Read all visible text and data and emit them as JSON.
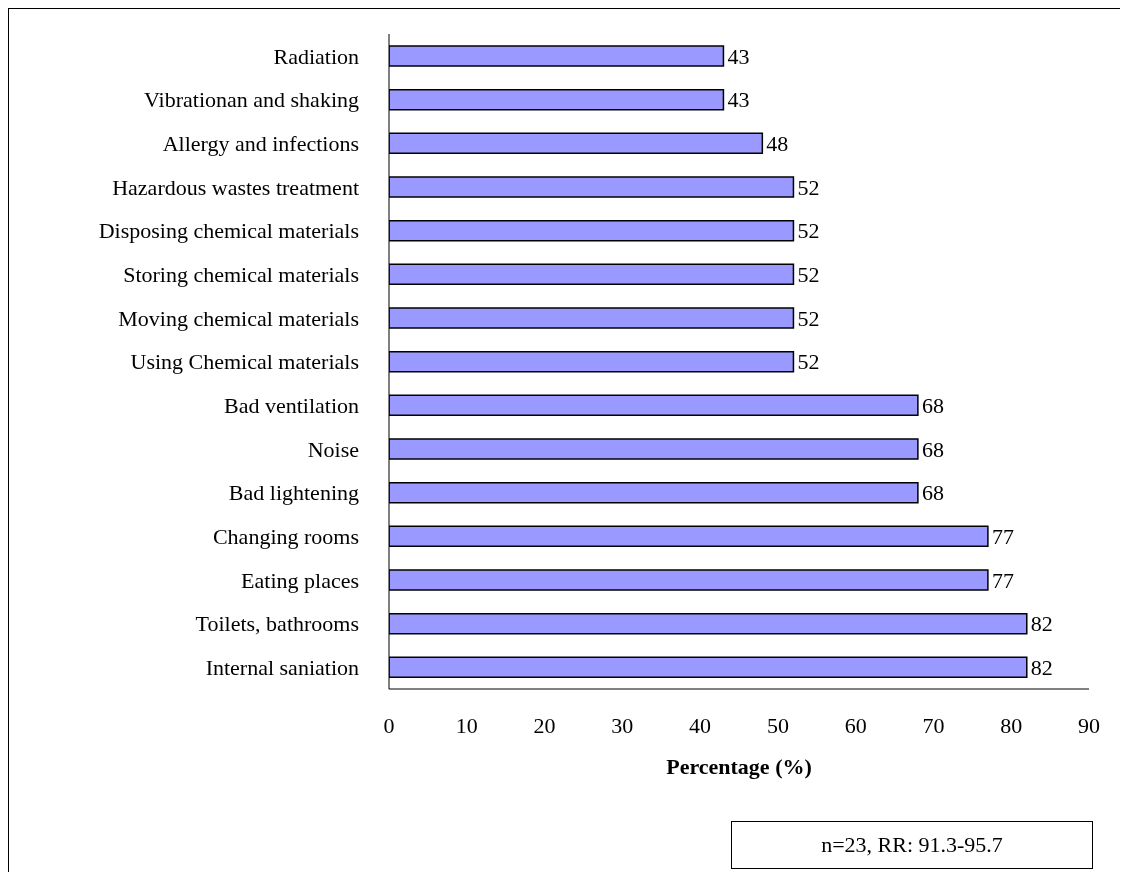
{
  "chart_data": {
    "type": "bar",
    "orientation": "horizontal",
    "xlabel": "Percentage (%)",
    "categories": [
      "Radiation",
      "Vibrationan and shaking",
      "Allergy and infections",
      "Hazardous wastes treatment",
      "Disposing chemical materials",
      "Storing chemical materials",
      "Moving chemical materials",
      "Using Chemical materials",
      "Bad ventilation",
      "Noise",
      "Bad lightening",
      "Changing rooms",
      "Eating places",
      "Toilets, bathrooms",
      "Internal saniation"
    ],
    "values": [
      43,
      43,
      48,
      52,
      52,
      52,
      52,
      52,
      68,
      68,
      68,
      77,
      77,
      82,
      82
    ],
    "color": "#9999ff",
    "xlim": [
      0,
      90
    ],
    "xticks": [
      0,
      10,
      20,
      30,
      40,
      50,
      60,
      70,
      80,
      90
    ],
    "grid": false,
    "legend": false,
    "data_labels": true,
    "annotations": [
      "n=23, RR: 91.3-95.7"
    ]
  }
}
